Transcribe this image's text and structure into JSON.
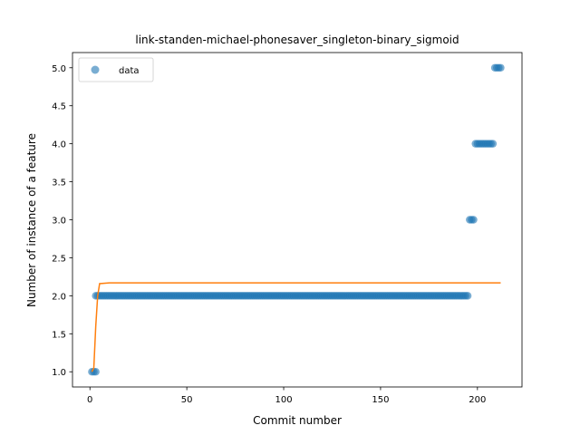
{
  "chart_data": {
    "type": "scatter",
    "title": "link-standen-michael-phonesaver_singleton-binary_sigmoid",
    "xlabel": "Commit number",
    "ylabel": "Number of instance of a feature",
    "xlim": [
      -9,
      223
    ],
    "ylim": [
      0.8,
      5.2
    ],
    "xticks": [
      0,
      50,
      100,
      150,
      200
    ],
    "xtick_labels": [
      "0",
      "50",
      "100",
      "150",
      "200"
    ],
    "yticks": [
      1.0,
      1.5,
      2.0,
      2.5,
      3.0,
      3.5,
      4.0,
      4.5,
      5.0
    ],
    "ytick_labels": [
      "1.0",
      "1.5",
      "2.0",
      "2.5",
      "3.0",
      "3.5",
      "4.0",
      "4.5",
      "5.0"
    ],
    "grid": false,
    "legend": {
      "placement": "upper-left",
      "entries": [
        "data"
      ]
    },
    "colors": {
      "data": "#1f77b4",
      "fit": "#ff7f0e"
    },
    "series": [
      {
        "name": "data",
        "kind": "scatter",
        "segments": [
          {
            "x_start": 1,
            "x_end": 3,
            "y": 1
          },
          {
            "x_start": 3,
            "x_end": 195,
            "y": 2
          },
          {
            "x_start": 196,
            "x_end": 198,
            "y": 3
          },
          {
            "x_start": 199,
            "x_end": 208,
            "y": 4
          },
          {
            "x_start": 209,
            "x_end": 212,
            "y": 5
          }
        ]
      },
      {
        "kind": "line",
        "x": [
          1,
          2,
          3,
          4,
          5,
          10,
          50,
          100,
          150,
          200,
          212
        ],
        "y": [
          1.0,
          1.05,
          1.6,
          2.0,
          2.16,
          2.17,
          2.17,
          2.17,
          2.17,
          2.17,
          2.17
        ]
      }
    ]
  }
}
